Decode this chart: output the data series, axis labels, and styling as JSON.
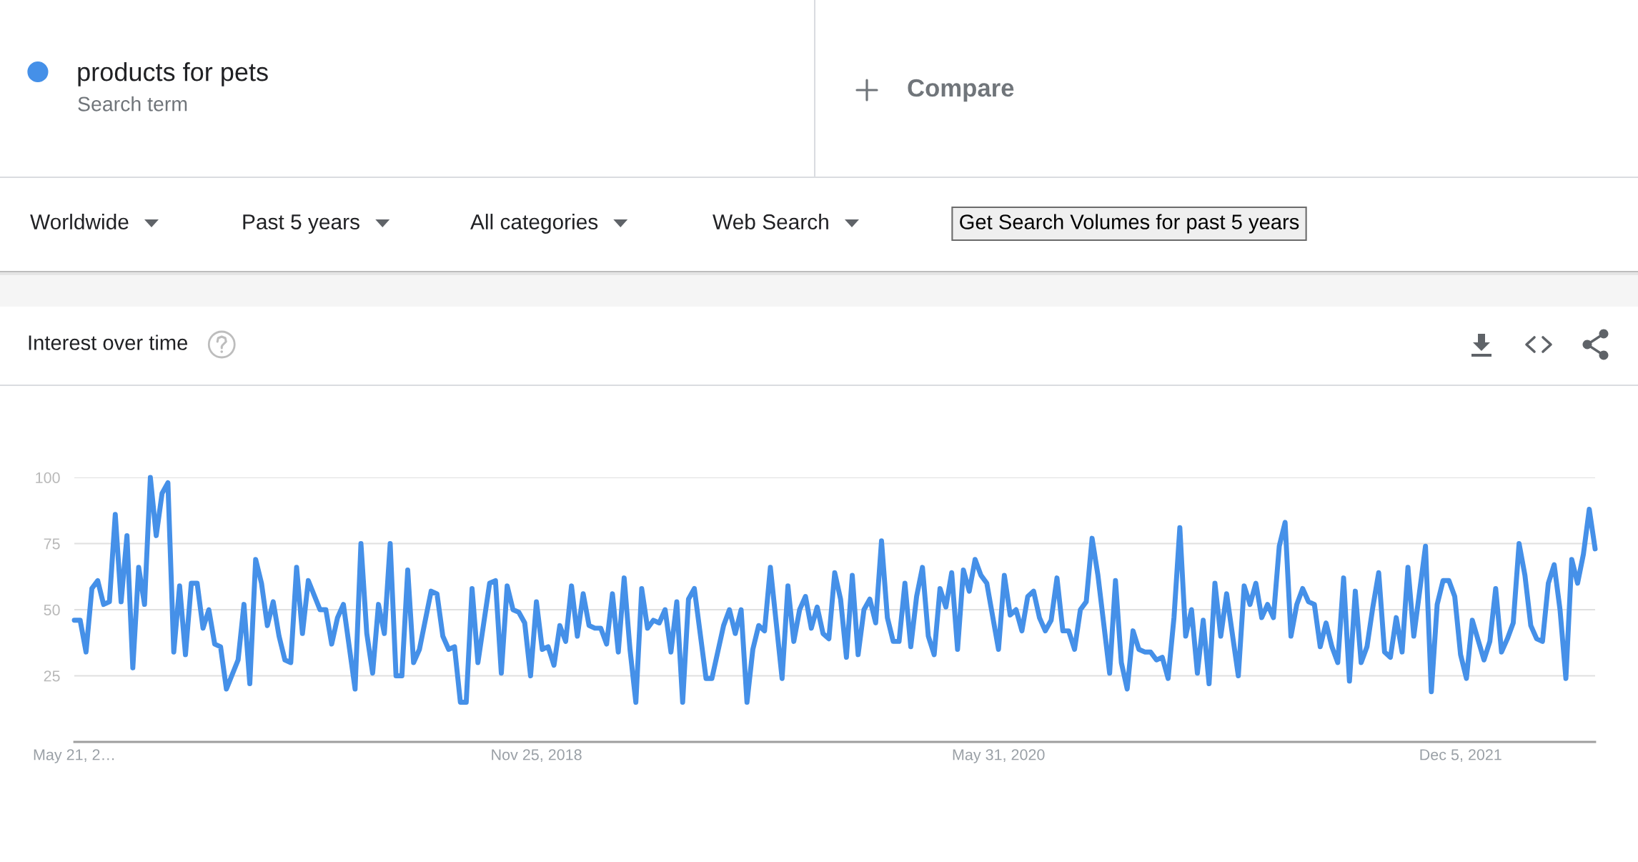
{
  "chart_data": {
    "type": "line",
    "title": "Interest over time",
    "annotations": [
      "Search term",
      "Compare",
      "Worldwide",
      "Past 5 years",
      "All categories",
      "Web Search",
      "Get Search Volumes for past 5 years"
    ],
    "x": [
      "2017-05-21",
      "2017-05-28",
      "2017-06-04",
      "2017-06-11",
      "2017-06-18",
      "2017-06-25",
      "2017-07-02",
      "2017-07-09",
      "2017-07-16",
      "2017-07-23",
      "2017-07-30",
      "2017-08-06",
      "2017-08-13",
      "2017-08-20",
      "2017-08-27",
      "2017-09-03",
      "2017-09-10",
      "2017-09-17",
      "2017-09-24",
      "2017-10-01",
      "2017-10-08",
      "2017-10-15",
      "2017-10-22",
      "2017-10-29",
      "2017-11-05",
      "2017-11-12",
      "2017-11-19",
      "2017-12-03",
      "2017-12-10",
      "2017-12-17",
      "2017-12-24",
      "2017-12-31",
      "2018-01-07",
      "2018-01-14",
      "2018-01-21",
      "2018-01-28",
      "2018-02-04",
      "2018-02-11",
      "2018-02-18",
      "2018-02-25",
      "2018-03-11",
      "2018-03-18",
      "2018-03-25",
      "2018-04-01",
      "2018-04-08",
      "2018-04-22",
      "2018-04-29",
      "2018-05-06",
      "2018-05-13",
      "2018-05-20",
      "2018-05-27",
      "2018-06-03",
      "2018-06-10",
      "2018-06-17",
      "2018-06-24",
      "2018-07-01",
      "2018-07-08",
      "2018-07-22",
      "2018-07-29",
      "2018-08-05",
      "2018-08-12",
      "2018-08-19",
      "2018-08-26",
      "2018-09-02",
      "2018-09-09",
      "2018-09-16",
      "2018-09-30",
      "2018-10-07",
      "2018-10-14",
      "2018-10-21",
      "2018-10-28",
      "2018-11-04",
      "2018-11-11",
      "2018-11-18",
      "2018-11-25",
      "2018-12-02",
      "2018-12-09",
      "2018-12-16",
      "2018-12-23",
      "2018-12-30",
      "2019-01-06",
      "2019-01-13",
      "2019-01-20",
      "2019-01-27",
      "2019-02-03",
      "2019-02-10",
      "2019-02-17",
      "2019-02-24",
      "2019-03-03",
      "2019-03-10",
      "2019-03-17",
      "2019-03-24",
      "2019-03-31",
      "2019-04-07",
      "2019-04-14",
      "2019-04-21",
      "2019-04-28",
      "2019-05-05",
      "2019-05-12",
      "2019-05-19",
      "2019-05-26",
      "2019-06-02",
      "2019-06-16",
      "2019-06-23",
      "2019-07-07",
      "2019-07-14",
      "2019-07-21",
      "2019-07-28",
      "2019-08-04",
      "2019-08-11",
      "2019-08-18",
      "2019-08-25",
      "2019-09-01",
      "2019-09-08",
      "2019-09-15",
      "2019-09-22",
      "2019-09-29",
      "2019-10-06",
      "2019-10-13",
      "2019-10-20",
      "2019-10-27",
      "2019-11-03",
      "2019-11-10",
      "2019-11-17",
      "2019-11-24",
      "2019-12-01",
      "2019-12-08",
      "2019-12-15",
      "2019-12-22",
      "2019-12-29",
      "2020-01-05",
      "2020-01-12",
      "2020-01-19",
      "2020-01-26",
      "2020-02-02",
      "2020-02-09",
      "2020-02-16",
      "2020-02-23",
      "2020-03-01",
      "2020-03-08",
      "2020-03-15",
      "2020-03-22",
      "2020-03-29",
      "2020-04-05",
      "2020-04-12",
      "2020-04-19",
      "2020-04-26",
      "2020-05-03",
      "2020-05-10",
      "2020-05-17",
      "2020-05-31",
      "2020-06-07",
      "2020-06-14",
      "2020-06-21",
      "2020-06-28",
      "2020-07-05",
      "2020-07-12",
      "2020-07-19",
      "2020-07-26",
      "2020-08-02",
      "2020-08-09",
      "2020-08-16",
      "2020-08-23",
      "2020-08-30",
      "2020-09-06",
      "2020-09-13",
      "2020-09-20",
      "2020-09-27",
      "2020-10-11",
      "2020-10-18",
      "2020-10-25",
      "2020-11-01",
      "2020-11-08",
      "2020-11-15",
      "2020-11-22",
      "2020-11-29",
      "2020-12-06",
      "2020-12-13",
      "2020-12-20",
      "2020-12-27",
      "2021-01-03",
      "2021-01-10",
      "2021-01-17",
      "2021-01-24",
      "2021-01-31",
      "2021-02-07",
      "2021-02-14",
      "2021-02-21",
      "2021-02-28",
      "2021-03-14",
      "2021-03-21",
      "2021-03-28",
      "2021-04-04",
      "2021-04-11",
      "2021-04-18",
      "2021-04-25",
      "2021-05-02",
      "2021-05-09",
      "2021-05-16",
      "2021-05-23",
      "2021-05-30",
      "2021-06-06",
      "2021-06-13",
      "2021-06-20",
      "2021-06-27",
      "2021-07-04",
      "2021-07-11",
      "2021-07-18",
      "2021-07-25",
      "2021-08-01",
      "2021-08-08",
      "2021-08-15",
      "2021-08-22",
      "2021-08-29",
      "2021-09-05",
      "2021-09-12",
      "2021-09-19",
      "2021-09-26",
      "2021-10-03",
      "2021-10-10",
      "2021-10-24",
      "2021-10-31",
      "2021-11-07",
      "2021-11-14",
      "2021-11-21",
      "2021-11-28",
      "2021-12-05",
      "2021-12-12",
      "2021-12-19",
      "2022-01-02",
      "2022-01-09",
      "2022-01-16",
      "2022-01-23",
      "2022-01-30",
      "2022-02-06",
      "2022-02-13",
      "2022-02-20",
      "2022-02-27",
      "2022-03-06",
      "2022-03-13",
      "2022-03-20",
      "2022-03-27",
      "2022-04-03",
      "2022-04-10",
      "2022-04-17",
      "2022-04-24",
      "2022-05-01",
      "2022-05-08",
      "2022-05-15"
    ],
    "series": [
      {
        "name": "products for pets",
        "color": "#4590e8",
        "values": [
          46,
          46,
          34,
          58,
          61,
          52,
          53,
          86,
          53,
          78,
          28,
          66,
          52,
          100,
          78,
          94,
          98,
          34,
          59,
          33,
          60,
          60,
          43,
          50,
          37,
          36,
          20,
          31,
          52,
          22,
          69,
          60,
          44,
          53,
          40,
          31,
          30,
          66,
          41,
          61,
          50,
          50,
          37,
          47,
          52,
          20,
          75,
          41,
          26,
          52,
          41,
          75,
          25,
          25,
          65,
          30,
          35,
          57,
          56,
          40,
          35,
          36,
          15,
          15,
          58,
          30,
          60,
          61,
          26,
          59,
          50,
          49,
          45,
          25,
          53,
          35,
          36,
          29,
          44,
          38,
          59,
          40,
          56,
          44,
          43,
          43,
          37,
          56,
          34,
          62,
          35,
          15,
          58,
          43,
          46,
          45,
          50,
          34,
          53,
          15,
          54,
          58,
          24,
          24,
          44,
          50,
          41,
          50,
          15,
          35,
          44,
          42,
          66,
          45,
          24,
          59,
          38,
          50,
          55,
          43,
          51,
          41,
          39,
          64,
          54,
          32,
          63,
          33,
          50,
          54,
          45,
          76,
          47,
          38,
          38,
          60,
          36,
          55,
          66,
          40,
          33,
          58,
          51,
          64,
          35,
          65,
          57,
          69,
          63,
          60,
          35,
          63,
          48,
          50,
          42,
          55,
          57,
          47,
          42,
          46,
          62,
          42,
          42,
          35,
          50,
          53,
          77,
          63,
          26,
          61,
          30,
          20,
          42,
          35,
          34,
          34,
          31,
          32,
          24,
          47,
          81,
          40,
          50,
          26,
          46,
          22,
          60,
          40,
          56,
          25,
          59,
          52,
          60,
          47,
          52,
          47,
          74,
          83,
          40,
          52,
          58,
          53,
          52,
          36,
          45,
          36,
          30,
          62,
          23,
          57,
          30,
          36,
          51,
          64,
          34,
          32,
          47,
          34,
          66,
          40,
          74,
          19,
          52,
          61,
          61,
          55,
          33,
          24,
          46,
          31,
          38,
          58,
          34,
          39,
          45,
          75,
          63,
          44,
          39,
          38,
          60,
          67,
          50,
          24,
          69,
          60,
          71,
          88,
          73
        ]
      }
    ],
    "xlim": [
      "2017-05-21",
      "2022-05-15"
    ],
    "xticks": [
      {
        "value": "2017-05-21",
        "label": "May 21, 2…"
      },
      {
        "value": "2018-11-25",
        "label": "Nov 25, 2018"
      },
      {
        "value": "2020-05-31",
        "label": "May 31, 2020"
      },
      {
        "value": "2021-12-05",
        "label": "Dec 5, 2021"
      }
    ],
    "ylim": [
      0,
      100
    ],
    "yticks": [
      25,
      50,
      75,
      100
    ],
    "grid": "y",
    "legend": "top left",
    "line_style": "solid"
  }
}
